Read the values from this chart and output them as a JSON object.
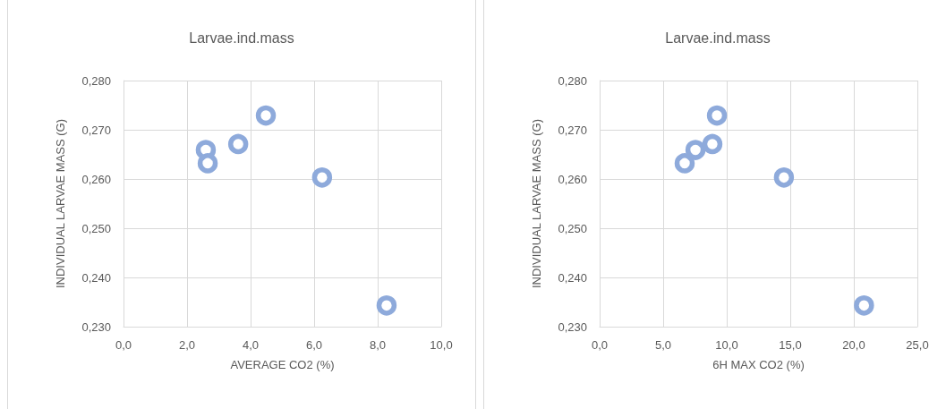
{
  "chart_data": [
    {
      "type": "scatter",
      "title": "Larvae.ind.mass",
      "xlabel": "AVERAGE CO2 (%)",
      "ylabel": "INDIVIDUAL LARVAE MASS (G)",
      "grid": true,
      "marker": "circle",
      "series": [
        {
          "color": "#8eaadb",
          "x": [
            2.59,
            2.65,
            3.61,
            4.48,
            6.25,
            8.28
          ],
          "values": [
            0.2659,
            0.2632,
            0.2671,
            0.2729,
            0.2603,
            0.2343
          ]
        }
      ],
      "xlim": [
        0,
        10
      ],
      "xticks": [
        {
          "value": 0,
          "label": "0,0"
        },
        {
          "value": 2,
          "label": "2,0"
        },
        {
          "value": 4,
          "label": "4,0"
        },
        {
          "value": 6,
          "label": "6,0"
        },
        {
          "value": 8,
          "label": "8,0"
        },
        {
          "value": 10,
          "label": "10,0"
        }
      ],
      "ylim": [
        0.23,
        0.28
      ],
      "yticks": [
        {
          "value": 0.23,
          "label": "0,230"
        },
        {
          "value": 0.24,
          "label": "0,240"
        },
        {
          "value": 0.25,
          "label": "0,250"
        },
        {
          "value": 0.26,
          "label": "0,260"
        },
        {
          "value": 0.27,
          "label": "0,270"
        },
        {
          "value": 0.28,
          "label": "0,280"
        }
      ]
    },
    {
      "type": "scatter",
      "title": "Larvae.ind.mass",
      "xlabel": "6H MAX CO2 (%)",
      "ylabel": "INDIVIDUAL LARVAE MASS (G)",
      "grid": true,
      "marker": "circle",
      "series": [
        {
          "color": "#8eaadb",
          "x": [
            6.69,
            7.54,
            8.87,
            9.23,
            14.5,
            20.8
          ],
          "values": [
            0.2632,
            0.2659,
            0.2671,
            0.2729,
            0.2603,
            0.2343
          ]
        }
      ],
      "xlim": [
        0,
        25
      ],
      "xticks": [
        {
          "value": 0,
          "label": "0,0"
        },
        {
          "value": 5,
          "label": "5,0"
        },
        {
          "value": 10,
          "label": "10,0"
        },
        {
          "value": 15,
          "label": "15,0"
        },
        {
          "value": 20,
          "label": "20,0"
        },
        {
          "value": 25,
          "label": "25,0"
        }
      ],
      "ylim": [
        0.23,
        0.28
      ],
      "yticks": [
        {
          "value": 0.23,
          "label": "0,230"
        },
        {
          "value": 0.24,
          "label": "0,240"
        },
        {
          "value": 0.25,
          "label": "0,250"
        },
        {
          "value": 0.26,
          "label": "0,260"
        },
        {
          "value": 0.27,
          "label": "0,270"
        },
        {
          "value": 0.28,
          "label": "0,280"
        }
      ]
    }
  ]
}
